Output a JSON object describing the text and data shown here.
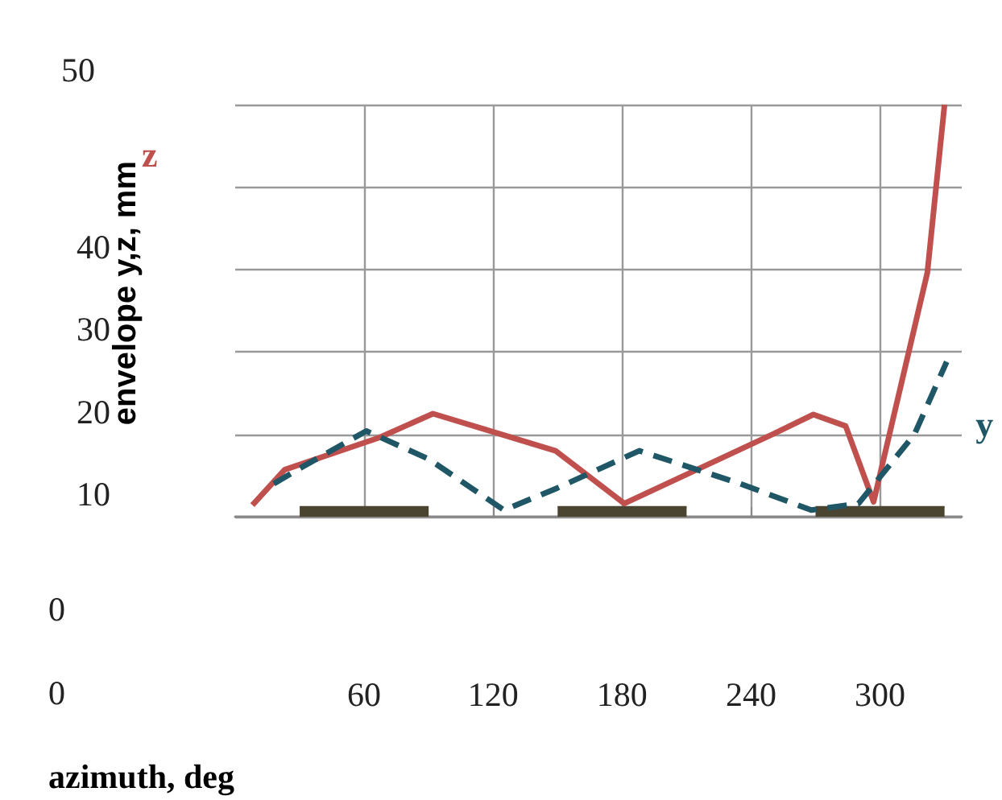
{
  "chart_data": {
    "type": "line",
    "xlabel": "azimuth, deg",
    "ylabel": "envelope y,z, mm",
    "xlim": [
      0,
      338
    ],
    "xticks": [
      60,
      120,
      180,
      240,
      300
    ],
    "ylim": [
      10,
      60
    ],
    "yticks": [
      10,
      20,
      30,
      40,
      {
        "value": 50,
        "label": null
      },
      {
        "value": 60,
        "label": null
      }
    ],
    "grid": true,
    "legend": false,
    "series": [
      {
        "name": "z",
        "color": "#c0504d",
        "line_style": "solid",
        "x": [
          8,
          23,
          67,
          92,
          116,
          149,
          181,
          250,
          269,
          284,
          297,
          322,
          330
        ],
        "values": [
          11.4,
          15.7,
          19.6,
          22.5,
          20.6,
          18,
          11.6,
          20,
          22.4,
          21,
          11.8,
          39.6,
          60
        ]
      },
      {
        "name": "y",
        "color": "#1f5766",
        "line_style": "dashed",
        "x": [
          18,
          31,
          61,
          90,
          125,
          150,
          188,
          235,
          268,
          290,
          316,
          331
        ],
        "values": [
          14,
          16,
          20.4,
          17,
          10.8,
          13.5,
          18,
          14,
          10.8,
          11.6,
          20,
          28.8
        ]
      },
      {
        "type": "area",
        "color": "#4a4530",
        "line_style": "solid",
        "x": [
          30,
          90,
          null,
          150,
          210,
          null,
          270,
          330
        ],
        "values": [
          11.2,
          11.2,
          null,
          11.2,
          11.2,
          null,
          11.2,
          11.2
        ]
      }
    ],
    "annotations": [
      "50",
      "0",
      "0"
    ]
  }
}
